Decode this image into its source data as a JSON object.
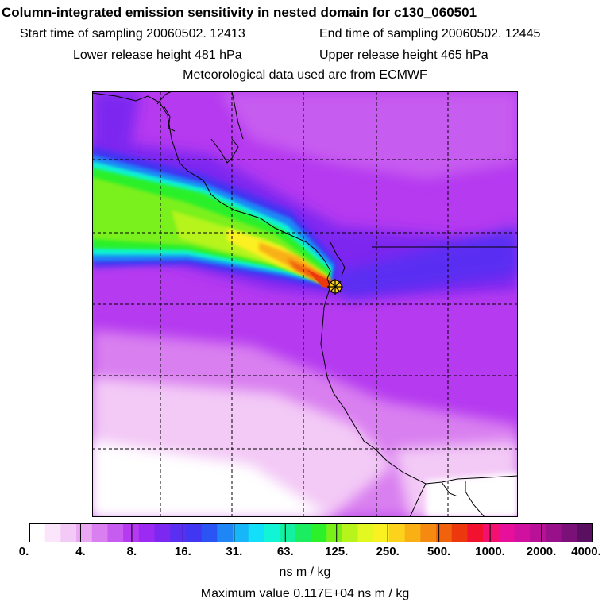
{
  "header": {
    "title": "Column-integrated emission sensitivity in nested domain for c130_060501",
    "start_time": "Start time of sampling 20060502. 12413",
    "end_time": "End time of sampling 20060502. 12445",
    "lower_height": "Lower release height  481 hPa",
    "upper_height": "Upper release height  465 hPa",
    "met_source": "Meteorological data used are from ECMWF"
  },
  "legend": {
    "ticks": [
      "0.",
      "4.",
      "8.",
      "16.",
      "31.",
      "63.",
      "125.",
      "250.",
      "500.",
      "1000.",
      "2000.",
      "4000."
    ],
    "colors": [
      "#ffffff",
      "#fbe5fb",
      "#f3c9f6",
      "#e9a8f1",
      "#d97ff0",
      "#c75cf0",
      "#b53af0",
      "#9b2af2",
      "#7d28f0",
      "#5a2ff2",
      "#4136f2",
      "#2a55f4",
      "#1f86f6",
      "#17b6f8",
      "#12e0f8",
      "#11f4d6",
      "#14f0a2",
      "#1aee60",
      "#2cf02a",
      "#7af01a",
      "#b6f41c",
      "#e2f820",
      "#fbf022",
      "#fcd21c",
      "#f8b014",
      "#f48a10",
      "#f0620c",
      "#ec380c",
      "#f21230",
      "#f4106e",
      "#e8109a",
      "#d0109e",
      "#b81096",
      "#98108a",
      "#7a1078",
      "#5a1060"
    ],
    "units": "ns m / kg",
    "max_value": "Maximum value  0.117E+04 ns m / kg"
  },
  "colors": {
    "background": "#ffffff",
    "frame": "#000000",
    "coast": "#000000"
  }
}
